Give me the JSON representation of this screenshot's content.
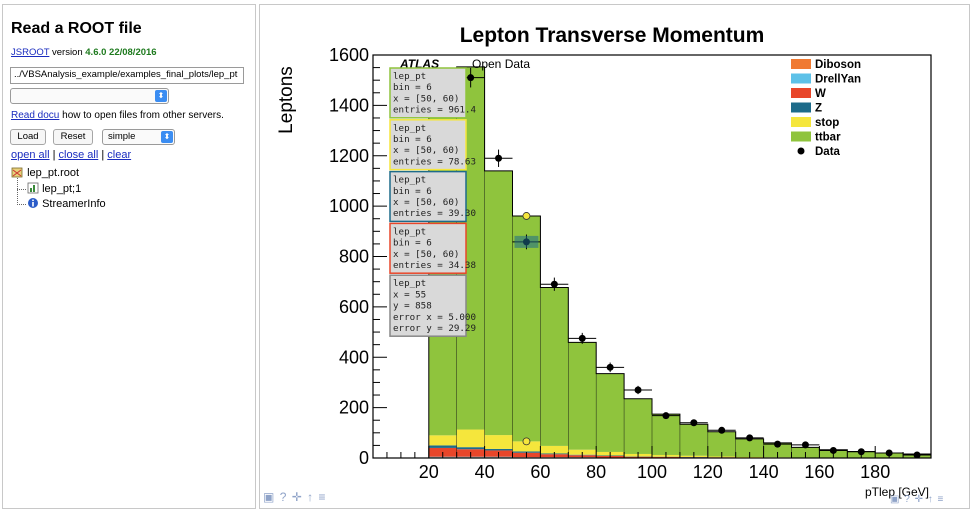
{
  "browser": {
    "title": "Read a ROOT file",
    "version_link": "JSROOT",
    "version_word": "version",
    "version_value": "4.6.0 22/08/2016",
    "file_path": "../VBSAnalysis_example/examples_final_plots/lep_pt",
    "docu_link": "Read docu",
    "docu_text": "how to open files from other servers.",
    "load_label": "Load",
    "reset_label": "Reset",
    "layout_value": "simple",
    "open_all": "open all",
    "close_all": "close all",
    "clear": "clear",
    "separator": "|",
    "tree": {
      "root_file": "lep_pt.root",
      "hist_item": "lep_pt;1",
      "streamer": "StreamerInfo"
    }
  },
  "chart_data": {
    "type": "bar",
    "title": "Lepton Transverse Momentum",
    "xlabel": "pTlep [GeV]",
    "ylabel": "Leptons",
    "xlim": [
      0,
      200
    ],
    "ylim": [
      0,
      1600
    ],
    "xticks": [
      20,
      40,
      60,
      80,
      100,
      120,
      140,
      160,
      180
    ],
    "yticks": [
      0,
      200,
      400,
      600,
      800,
      1000,
      1200,
      1400,
      1600
    ],
    "stacked": true,
    "bin_edges": [
      20,
      30,
      40,
      50,
      60,
      70,
      80,
      90,
      100,
      110,
      120,
      130,
      140,
      150,
      160,
      170,
      180,
      190,
      200
    ],
    "series": [
      {
        "name": "Diboson",
        "color": "#f07a32",
        "values": [
          3,
          3,
          3,
          2,
          2,
          2,
          1,
          1,
          1,
          1,
          1,
          1,
          0,
          0,
          0,
          0,
          0,
          0
        ]
      },
      {
        "name": "DrellYan",
        "color": "#5dc1e8",
        "values": [
          2,
          2,
          2,
          1,
          1,
          1,
          1,
          0,
          0,
          0,
          0,
          0,
          0,
          0,
          0,
          0,
          0,
          0
        ]
      },
      {
        "name": "W",
        "color": "#e8462a",
        "values": [
          35,
          30,
          25,
          18,
          12,
          8,
          6,
          4,
          3,
          2,
          2,
          1,
          1,
          1,
          0,
          0,
          0,
          0
        ]
      },
      {
        "name": "Z",
        "color": "#1d6b8a",
        "values": [
          10,
          8,
          6,
          5,
          3,
          2,
          2,
          1,
          1,
          1,
          0,
          0,
          0,
          0,
          0,
          0,
          0,
          0
        ]
      },
      {
        "name": "stop",
        "color": "#f5e63c",
        "values": [
          40,
          70,
          55,
          40,
          30,
          20,
          14,
          10,
          7,
          5,
          3,
          2,
          2,
          1,
          1,
          1,
          0,
          0
        ]
      },
      {
        "name": "ttbar",
        "color": "#8fc43d",
        "values": [
          1310,
          1440,
          1049,
          895,
          629,
          426,
          311,
          219,
          162,
          125,
          98,
          72,
          57,
          40,
          32,
          25,
          20,
          16
        ]
      }
    ],
    "data_points": {
      "name": "Data",
      "x": [
        25,
        35,
        45,
        55,
        65,
        75,
        85,
        95,
        105,
        115,
        125,
        135,
        145,
        155,
        165,
        175,
        185,
        195
      ],
      "y": [
        1390,
        1510,
        1190,
        858,
        690,
        475,
        360,
        270,
        168,
        140,
        110,
        80,
        55,
        52,
        30,
        25,
        20,
        12
      ],
      "err_x": 5
    },
    "legend_position": "top-right",
    "annotations": {
      "atlas": "ATLAS",
      "open_data": "Open Data"
    },
    "tooltips": [
      {
        "lines": [
          "lep_pt",
          "bin = 6",
          "x = [50, 60)",
          "entries = 961.4"
        ],
        "border": "#8fc43d"
      },
      {
        "lines": [
          "lep_pt",
          "bin = 6",
          "x = [50, 60)",
          "entries = 78.63"
        ],
        "border": "#f5e63c"
      },
      {
        "lines": [
          "lep_pt",
          "bin = 6",
          "x = [50, 60)",
          "entries = 39.30"
        ],
        "border": "#1d6b8a"
      },
      {
        "lines": [
          "lep_pt",
          "bin = 6",
          "x = [50, 60)",
          "entries = 34.38"
        ],
        "border": "#e8462a"
      },
      {
        "lines": [
          "lep_pt",
          "x = 55",
          "y = 858",
          "error x = 5.000",
          "error y = 29.29"
        ],
        "border": "#888888"
      }
    ]
  },
  "toolbar": {
    "icons": [
      "camera-icon",
      "help-icon",
      "move-icon",
      "expand-icon",
      "menu-icon"
    ]
  }
}
